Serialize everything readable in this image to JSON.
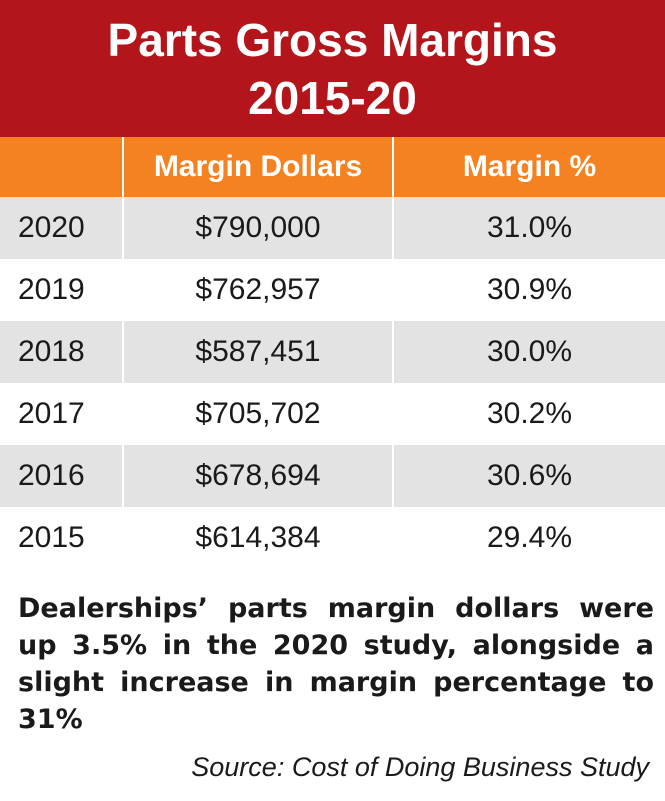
{
  "title_line1": "Parts Gross Margins",
  "title_line2": "2015-20",
  "colors": {
    "title_bg": "#b3151b",
    "header_bg": "#f58220",
    "row_shade": "#e3e3e3"
  },
  "chart_data": {
    "type": "table",
    "columns": [
      "",
      "Margin Dollars",
      "Margin %"
    ],
    "rows": [
      {
        "year": "2020",
        "margin_dollars": "$790,000",
        "margin_pct": "31.0%"
      },
      {
        "year": "2019",
        "margin_dollars": "$762,957",
        "margin_pct": "30.9%"
      },
      {
        "year": "2018",
        "margin_dollars": "$587,451",
        "margin_pct": "30.0%"
      },
      {
        "year": "2017",
        "margin_dollars": "$705,702",
        "margin_pct": "30.2%"
      },
      {
        "year": "2016",
        "margin_dollars": "$678,694",
        "margin_pct": "30.6%"
      },
      {
        "year": "2015",
        "margin_dollars": "$614,384",
        "margin_pct": "29.4%"
      }
    ]
  },
  "caption": "Dealerships’ parts margin dollars were up 3.5% in the 2020 study, alongside a slight increase in margin percentage to 31%",
  "source": "Source: Cost of Doing Business Study"
}
